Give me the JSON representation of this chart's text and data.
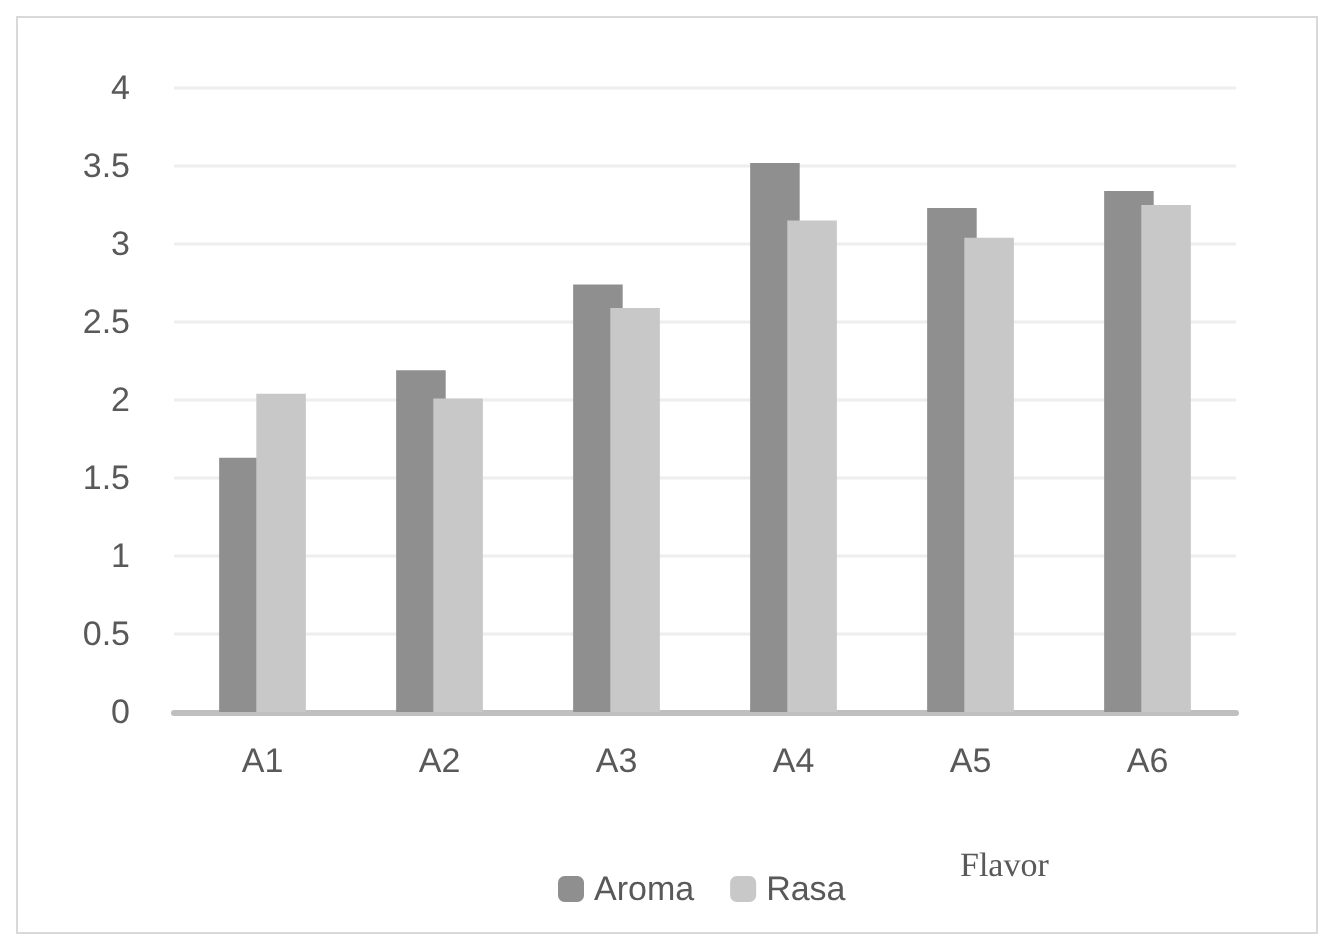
{
  "chart_data": {
    "type": "bar",
    "categories": [
      "A1",
      "A2",
      "A3",
      "A4",
      "A5",
      "A6"
    ],
    "series": [
      {
        "name": "Aroma",
        "color": "#8f8f8f",
        "values": [
          1.63,
          2.19,
          2.74,
          3.52,
          3.23,
          3.34
        ]
      },
      {
        "name": "Rasa",
        "color": "#c8c8c8",
        "values": [
          2.04,
          2.01,
          2.59,
          3.15,
          3.04,
          3.25
        ]
      }
    ],
    "ylim": [
      0,
      4
    ],
    "yticks": [
      0,
      0.5,
      1,
      1.5,
      2,
      2.5,
      3,
      3.5,
      4
    ],
    "grid": "y",
    "legend": "bottom",
    "annotations": [
      "Flavor"
    ]
  }
}
